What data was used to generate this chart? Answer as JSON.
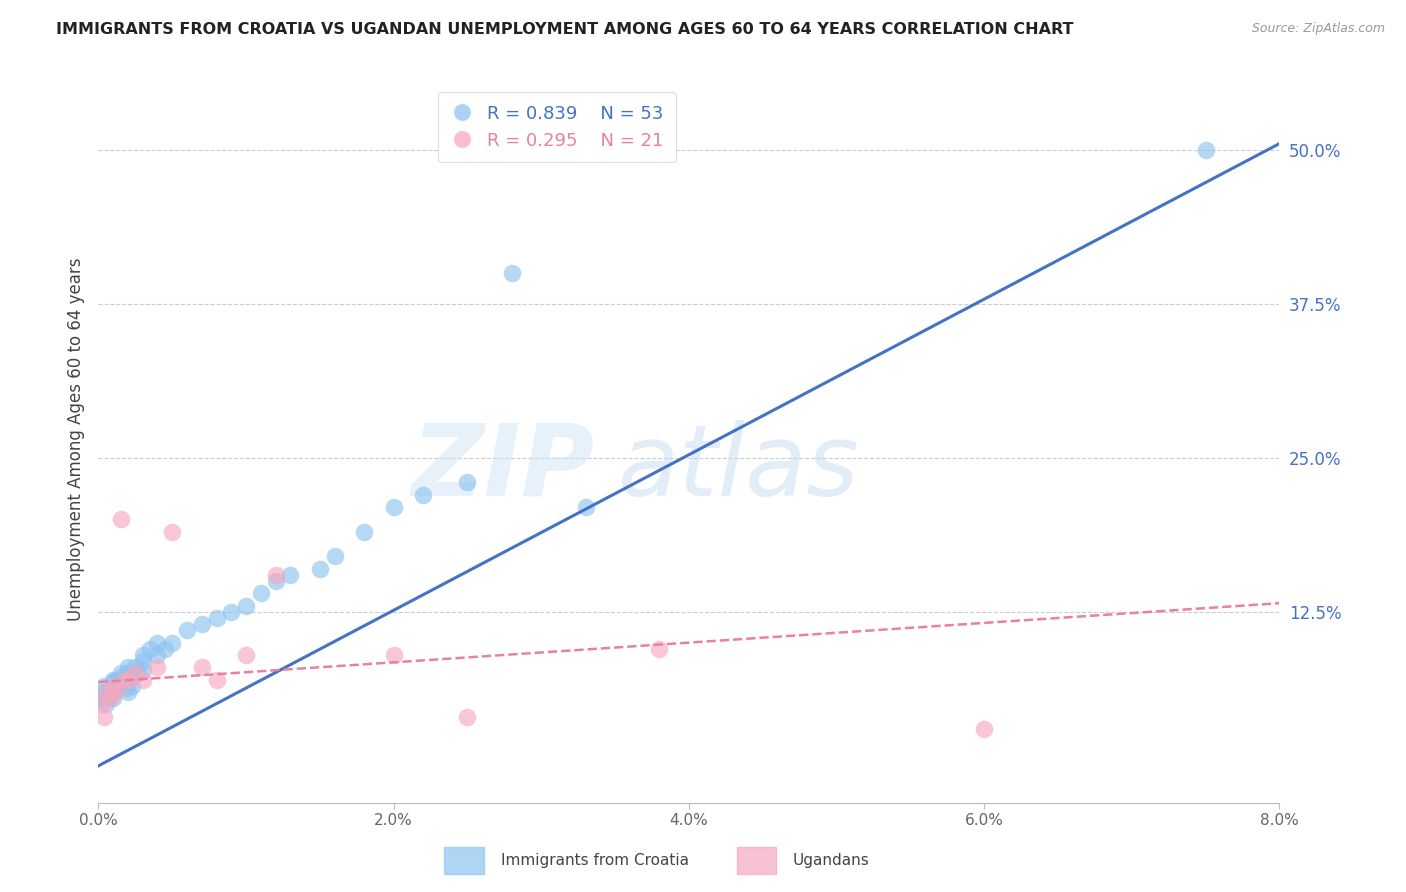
{
  "title": "IMMIGRANTS FROM CROATIA VS UGANDAN UNEMPLOYMENT AMONG AGES 60 TO 64 YEARS CORRELATION CHART",
  "source": "Source: ZipAtlas.com",
  "ylabel": "Unemployment Among Ages 60 to 64 years",
  "xlim": [
    0.0,
    0.08
  ],
  "ylim": [
    -0.03,
    0.56
  ],
  "xticks": [
    0.0,
    0.02,
    0.04,
    0.06,
    0.08
  ],
  "xtick_labels": [
    "0.0%",
    "2.0%",
    "4.0%",
    "6.0%",
    "8.0%"
  ],
  "right_yticks": [
    0.0,
    0.125,
    0.25,
    0.375,
    0.5
  ],
  "right_ytick_labels": [
    "",
    "12.5%",
    "25.0%",
    "37.5%",
    "50.0%"
  ],
  "watermark_zip": "ZIP",
  "watermark_atlas": "atlas",
  "blue_color": "#8EC4F0",
  "pink_color": "#F5A8C0",
  "blue_line_color": "#4472C4",
  "pink_line_color": "#E8829A",
  "legend_blue_R": "0.839",
  "legend_blue_N": "53",
  "legend_pink_R": "0.295",
  "legend_pink_N": "21",
  "blue_scatter_x": [
    0.0002,
    0.0003,
    0.0004,
    0.0005,
    0.0006,
    0.0007,
    0.0008,
    0.0009,
    0.001,
    0.001,
    0.001,
    0.001,
    0.001,
    0.0012,
    0.0013,
    0.0015,
    0.0016,
    0.0017,
    0.0018,
    0.0019,
    0.002,
    0.002,
    0.002,
    0.002,
    0.0022,
    0.0023,
    0.0025,
    0.0027,
    0.003,
    0.003,
    0.003,
    0.0035,
    0.004,
    0.004,
    0.0045,
    0.005,
    0.006,
    0.007,
    0.008,
    0.009,
    0.01,
    0.011,
    0.012,
    0.013,
    0.015,
    0.016,
    0.018,
    0.02,
    0.022,
    0.025,
    0.028,
    0.033,
    0.075
  ],
  "blue_scatter_y": [
    0.055,
    0.06,
    0.065,
    0.05,
    0.055,
    0.06,
    0.058,
    0.062,
    0.065,
    0.07,
    0.068,
    0.06,
    0.055,
    0.07,
    0.065,
    0.075,
    0.072,
    0.068,
    0.07,
    0.063,
    0.075,
    0.08,
    0.068,
    0.06,
    0.072,
    0.065,
    0.08,
    0.075,
    0.09,
    0.085,
    0.078,
    0.095,
    0.1,
    0.09,
    0.095,
    0.1,
    0.11,
    0.115,
    0.12,
    0.125,
    0.13,
    0.14,
    0.15,
    0.155,
    0.16,
    0.17,
    0.19,
    0.21,
    0.22,
    0.23,
    0.4,
    0.21,
    0.5
  ],
  "pink_scatter_x": [
    0.0002,
    0.0004,
    0.0006,
    0.0008,
    0.001,
    0.0012,
    0.0015,
    0.0018,
    0.002,
    0.0025,
    0.003,
    0.004,
    0.005,
    0.007,
    0.008,
    0.01,
    0.012,
    0.02,
    0.025,
    0.038,
    0.06
  ],
  "pink_scatter_y": [
    0.05,
    0.04,
    0.06,
    0.055,
    0.065,
    0.06,
    0.2,
    0.07,
    0.07,
    0.075,
    0.07,
    0.08,
    0.19,
    0.08,
    0.07,
    0.09,
    0.155,
    0.09,
    0.04,
    0.095,
    0.03
  ],
  "blue_line_x0": 0.0,
  "blue_line_x1": 0.08,
  "blue_line_y0": 0.0,
  "blue_line_y1": 0.505,
  "pink_line_x0": 0.0,
  "pink_line_x1": 0.08,
  "pink_line_y0": 0.068,
  "pink_line_y1": 0.132
}
